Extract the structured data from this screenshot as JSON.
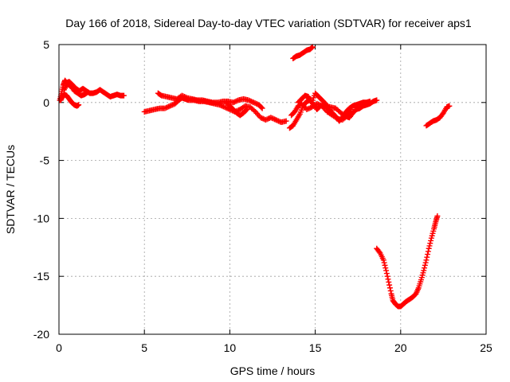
{
  "chart_data": {
    "type": "scatter",
    "title": "Day 166 of 2018, Sidereal Day-to-day VTEC variation (SDTVAR) for receiver aps1",
    "xlabel": "GPS time / hours",
    "ylabel": "SDTVAR / TECUs",
    "xlim": [
      0,
      25
    ],
    "ylim": [
      -20,
      5
    ],
    "xticks": [
      "0",
      "5",
      "10",
      "15",
      "20",
      "25"
    ],
    "yticks": [
      "-20",
      "-15",
      "-10",
      "-5",
      "0",
      "5"
    ],
    "grid": true,
    "marker": "cross",
    "marker_color": "#ff0000",
    "series": [
      {
        "name": "sdtvar",
        "segments": [
          [
            [
              0.05,
              0.2
            ],
            [
              0.15,
              0.8
            ],
            [
              0.25,
              1.5
            ],
            [
              0.35,
              1.9
            ],
            [
              0.45,
              1.7
            ],
            [
              0.6,
              1.8
            ],
            [
              0.8,
              1.5
            ],
            [
              1.0,
              1.2
            ],
            [
              1.2,
              1.0
            ],
            [
              1.4,
              1.2
            ],
            [
              1.6,
              1.0
            ],
            [
              1.8,
              0.8
            ],
            [
              2.0,
              0.8
            ],
            [
              2.2,
              0.9
            ],
            [
              2.4,
              1.1
            ],
            [
              2.6,
              0.9
            ],
            [
              2.8,
              0.7
            ],
            [
              3.0,
              0.5
            ],
            [
              3.2,
              0.6
            ],
            [
              3.4,
              0.7
            ],
            [
              3.6,
              0.6
            ],
            [
              3.8,
              0.6
            ]
          ],
          [
            [
              0.1,
              0.2
            ],
            [
              0.2,
              0.5
            ],
            [
              0.3,
              0.7
            ],
            [
              0.45,
              0.6
            ],
            [
              0.6,
              0.3
            ],
            [
              0.75,
              0.0
            ],
            [
              0.9,
              -0.2
            ],
            [
              1.05,
              -0.3
            ],
            [
              1.15,
              -0.2
            ]
          ],
          [
            [
              0.3,
              1.1
            ],
            [
              0.5,
              1.6
            ],
            [
              0.7,
              1.4
            ],
            [
              0.9,
              1.0
            ],
            [
              1.1,
              0.8
            ],
            [
              1.3,
              0.6
            ],
            [
              1.5,
              0.7
            ],
            [
              1.7,
              0.9
            ]
          ],
          [
            [
              5.0,
              -0.8
            ],
            [
              5.3,
              -0.7
            ],
            [
              5.6,
              -0.6
            ],
            [
              5.9,
              -0.5
            ],
            [
              6.2,
              -0.5
            ],
            [
              6.5,
              -0.3
            ],
            [
              6.8,
              -0.1
            ],
            [
              7.0,
              0.2
            ],
            [
              7.2,
              0.4
            ],
            [
              7.4,
              0.3
            ],
            [
              7.6,
              0.2
            ],
            [
              7.9,
              0.2
            ],
            [
              8.2,
              0.1
            ],
            [
              8.5,
              0.1
            ],
            [
              8.8,
              0.0
            ],
            [
              9.1,
              -0.1
            ],
            [
              9.4,
              -0.2
            ],
            [
              9.7,
              -0.4
            ],
            [
              10.0,
              -0.6
            ],
            [
              10.3,
              -0.8
            ],
            [
              10.6,
              -0.6
            ],
            [
              10.9,
              -0.3
            ],
            [
              11.2,
              -0.4
            ],
            [
              11.5,
              -0.8
            ],
            [
              11.8,
              -1.3
            ],
            [
              12.1,
              -1.5
            ],
            [
              12.4,
              -1.3
            ],
            [
              12.7,
              -1.5
            ],
            [
              13.0,
              -1.7
            ],
            [
              13.3,
              -1.6
            ]
          ],
          [
            [
              5.8,
              0.8
            ],
            [
              6.0,
              0.6
            ],
            [
              6.3,
              0.5
            ],
            [
              6.6,
              0.4
            ],
            [
              6.9,
              0.3
            ],
            [
              7.2,
              0.6
            ],
            [
              7.5,
              0.4
            ],
            [
              7.8,
              0.3
            ],
            [
              8.1,
              0.2
            ],
            [
              8.4,
              0.2
            ],
            [
              8.7,
              0.1
            ],
            [
              9.0,
              0.0
            ],
            [
              9.3,
              0.0
            ],
            [
              9.6,
              0.1
            ],
            [
              9.9,
              0.1
            ],
            [
              10.2,
              0.0
            ],
            [
              10.5,
              0.2
            ],
            [
              10.8,
              0.3
            ],
            [
              11.1,
              0.2
            ],
            [
              11.4,
              0.0
            ],
            [
              11.7,
              -0.2
            ],
            [
              11.9,
              -0.5
            ]
          ],
          [
            [
              9.8,
              0.0
            ],
            [
              10.0,
              -0.3
            ],
            [
              10.2,
              -0.6
            ],
            [
              10.4,
              -0.9
            ],
            [
              10.6,
              -1.1
            ],
            [
              10.8,
              -0.9
            ],
            [
              11.0,
              -0.6
            ]
          ],
          [
            [
              13.5,
              -2.2
            ],
            [
              13.7,
              -2.0
            ],
            [
              13.9,
              -1.5
            ],
            [
              14.1,
              -1.0
            ],
            [
              14.3,
              -0.3
            ],
            [
              14.5,
              0.1
            ],
            [
              14.7,
              0.2
            ],
            [
              14.9,
              -0.2
            ],
            [
              15.1,
              -0.6
            ],
            [
              15.3,
              -0.3
            ],
            [
              15.6,
              -0.3
            ],
            [
              15.9,
              -0.4
            ],
            [
              16.2,
              -0.5
            ],
            [
              16.5,
              -0.9
            ],
            [
              16.8,
              -1.2
            ],
            [
              17.0,
              -1.3
            ],
            [
              17.2,
              -0.9
            ],
            [
              17.4,
              -0.6
            ],
            [
              17.6,
              -0.5
            ],
            [
              17.8,
              -0.3
            ],
            [
              18.0,
              -0.2
            ],
            [
              18.2,
              -0.1
            ],
            [
              18.4,
              0.1
            ],
            [
              18.6,
              0.2
            ]
          ],
          [
            [
              14.0,
              0.0
            ],
            [
              14.2,
              0.3
            ],
            [
              14.4,
              0.6
            ],
            [
              14.6,
              0.5
            ],
            [
              14.8,
              0.0
            ],
            [
              15.0,
              0.8
            ],
            [
              15.2,
              0.5
            ],
            [
              15.4,
              0.2
            ],
            [
              15.6,
              -0.1
            ],
            [
              15.8,
              -0.6
            ],
            [
              16.0,
              -0.9
            ],
            [
              16.2,
              -1.2
            ],
            [
              16.4,
              -1.6
            ],
            [
              16.6,
              -1.3
            ],
            [
              16.8,
              -0.8
            ],
            [
              17.0,
              -0.5
            ],
            [
              17.2,
              -0.3
            ],
            [
              17.4,
              -0.2
            ],
            [
              17.6,
              -0.1
            ],
            [
              17.8,
              0.0
            ],
            [
              18.0,
              0.0
            ],
            [
              18.2,
              0.1
            ]
          ],
          [
            [
              13.6,
              -1.1
            ],
            [
              13.8,
              -0.8
            ],
            [
              14.0,
              -0.3
            ],
            [
              14.2,
              -0.1
            ],
            [
              14.5,
              -0.6
            ],
            [
              14.8,
              -0.4
            ],
            [
              15.1,
              -0.1
            ],
            [
              15.4,
              -0.3
            ],
            [
              15.7,
              -0.8
            ],
            [
              16.0,
              -1.1
            ],
            [
              16.3,
              -1.4
            ],
            [
              16.6,
              -1.5
            ],
            [
              16.9,
              -1.1
            ],
            [
              17.1,
              -0.6
            ]
          ],
          [
            [
              13.7,
              3.8
            ],
            [
              13.9,
              4.0
            ],
            [
              14.1,
              4.1
            ],
            [
              14.3,
              4.3
            ],
            [
              14.5,
              4.5
            ],
            [
              14.7,
              4.6
            ],
            [
              14.85,
              4.8
            ]
          ],
          [
            [
              18.6,
              -12.6
            ],
            [
              18.8,
              -13.0
            ],
            [
              19.0,
              -13.6
            ],
            [
              19.15,
              -14.5
            ],
            [
              19.3,
              -15.5
            ],
            [
              19.45,
              -16.5
            ],
            [
              19.55,
              -17.1
            ],
            [
              19.7,
              -17.4
            ],
            [
              19.85,
              -17.6
            ],
            [
              20.0,
              -17.6
            ],
            [
              20.15,
              -17.4
            ],
            [
              20.3,
              -17.2
            ],
            [
              20.5,
              -17.0
            ],
            [
              20.7,
              -16.8
            ],
            [
              20.9,
              -16.5
            ],
            [
              21.05,
              -16.0
            ],
            [
              21.2,
              -15.3
            ],
            [
              21.35,
              -14.5
            ],
            [
              21.5,
              -13.6
            ],
            [
              21.65,
              -12.6
            ],
            [
              21.8,
              -11.7
            ],
            [
              21.95,
              -10.9
            ],
            [
              22.05,
              -10.3
            ],
            [
              22.15,
              -9.8
            ]
          ],
          [
            [
              21.5,
              -2.0
            ],
            [
              21.7,
              -1.8
            ],
            [
              21.9,
              -1.6
            ],
            [
              22.1,
              -1.5
            ],
            [
              22.3,
              -1.3
            ],
            [
              22.5,
              -0.9
            ],
            [
              22.7,
              -0.4
            ],
            [
              22.85,
              -0.3
            ]
          ]
        ]
      }
    ]
  }
}
